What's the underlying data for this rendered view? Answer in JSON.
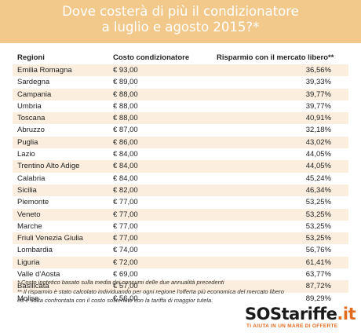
{
  "title": {
    "line1": "Dove costerà di più il condizionatore",
    "line2": "a luglio e agosto 2015?*"
  },
  "table": {
    "headers": {
      "region": "Regioni",
      "cost": "Costo condizionatore",
      "saving": "Risparmio con il mercato libero**"
    },
    "rows": [
      {
        "region": "Emilia Romagna",
        "cost": "€ 93,00",
        "saving": "36,56%"
      },
      {
        "region": "Sardegna",
        "cost": "€ 89,00",
        "saving": "39,33%"
      },
      {
        "region": "Campania",
        "cost": "€ 88,00",
        "saving": "39,77%"
      },
      {
        "region": "Umbria",
        "cost": "€ 88,00",
        "saving": "39,77%"
      },
      {
        "region": "Toscana",
        "cost": "€ 88,00",
        "saving": "40,91%"
      },
      {
        "region": "Abruzzo",
        "cost": "€ 87,00",
        "saving": "32,18%"
      },
      {
        "region": "Puglia",
        "cost": "€ 86,00",
        "saving": "43,02%"
      },
      {
        "region": "Lazio",
        "cost": "€ 84,00",
        "saving": "44,05%"
      },
      {
        "region": "Trentino Alto Adige",
        "cost": "€ 84,00",
        "saving": "44,05%"
      },
      {
        "region": "Calabria",
        "cost": "€ 84,00",
        "saving": "45,24%"
      },
      {
        "region": "Sicilia",
        "cost": "€ 82,00",
        "saving": "46,34%"
      },
      {
        "region": "Piemonte",
        "cost": "€ 77,00",
        "saving": "53,25%"
      },
      {
        "region": "Veneto",
        "cost": "€ 77,00",
        "saving": "53,25%"
      },
      {
        "region": "Marche",
        "cost": "€ 77,00",
        "saving": "53,25%"
      },
      {
        "region": "Friuli Venezia Giulia",
        "cost": "€ 77,00",
        "saving": "53,25%"
      },
      {
        "region": "Lombardia",
        "cost": "€ 74,00",
        "saving": "56,76%"
      },
      {
        "region": "Liguria",
        "cost": "€ 72,00",
        "saving": "61,41%"
      },
      {
        "region": "Valle d'Aosta",
        "cost": "€ 69,00",
        "saving": "63,77%"
      },
      {
        "region": "Basilicata",
        "cost": "€ 57,00",
        "saving": "87,72%"
      },
      {
        "region": "Molise",
        "cost": "€ 56,00",
        "saving": "89,29%"
      }
    ]
  },
  "notes": {
    "note1": "* Costo ipotetico basato sulla media dei consumi delle due annualità precedenti",
    "note2": "** Il risparmio è stato calcolato individuando per ogni regione l'offerta più economica del mercato libero",
    "note3": "ed è stata confrontata con il costo sostenuto con la tariffa di maggior tutela."
  },
  "logo": {
    "sos": "SOS",
    "tariffe": "tariffe",
    "it": ".it",
    "tagline": "TI AIUTA IN UN MARE DI OFFERTE"
  },
  "colors": {
    "title_band": "#f2c98b",
    "row_alt": "#fbeede",
    "brand_orange": "#e06b1e"
  }
}
